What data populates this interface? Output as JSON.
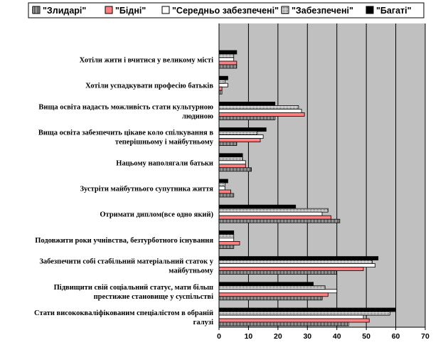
{
  "chart_data": {
    "type": "bar",
    "orientation": "horizontal",
    "legend_position": "top",
    "grid": true,
    "xlim": [
      0,
      70
    ],
    "x_ticks": [
      0,
      10,
      20,
      30,
      40,
      50,
      60,
      70
    ],
    "x_tick_labels": [
      "0",
      "10",
      "20",
      "30",
      "40",
      "50",
      "60",
      "70"
    ],
    "categories": [
      [
        "Хотіли жити і вчитися у великому місті"
      ],
      [
        "Хотіли успадкувати професію батьків"
      ],
      [
        "Вища освіта надасть можливість стати культурною",
        "людиною"
      ],
      [
        "Вища освіта забезпечить цікаве коло спілкування в",
        "теперішньому і майбутньому"
      ],
      [
        "Нацьому наполягали батьки"
      ],
      [
        "Зустріти майбутнього супутника життя"
      ],
      [
        "Отримати диплом(все одно який)"
      ],
      [
        "Подовжити роки учнівства, безтурботного існування"
      ],
      [
        "Забезпечити собі стабільний матеріальний статок у",
        "майбутньому"
      ],
      [
        "Підвищити свій соціальний статус, мати більш",
        "престижне становище у суспільстві"
      ],
      [
        "Стати висококваліфікованим спеціалістом в обраній",
        "галузі"
      ]
    ],
    "series": [
      {
        "name": "\"Багаті\"",
        "color": "#000000",
        "pattern": "solid-black",
        "values": [
          6,
          3,
          19,
          16,
          8,
          3,
          26,
          5,
          54,
          32,
          60
        ]
      },
      {
        "name": "\"Забезпечені\"",
        "color": "#ffffff",
        "pattern": "dots",
        "values": [
          5,
          2,
          27,
          13,
          8,
          2,
          37,
          5,
          52,
          36,
          58
        ]
      },
      {
        "name": "\"Середньо забезпечені\"",
        "color": "#ffffff",
        "pattern": "white",
        "values": [
          5,
          3,
          28,
          15,
          9,
          2,
          35,
          5,
          53,
          40,
          49
        ]
      },
      {
        "name": "\"Бідні\"",
        "color": "#ff8080",
        "pattern": "pink",
        "values": [
          6,
          1,
          29,
          14,
          9,
          4,
          38,
          7,
          49,
          37,
          51
        ]
      },
      {
        "name": "\"Злидарі\"",
        "color": "#ffffff",
        "pattern": "vertical-lines",
        "values": [
          6,
          1,
          19,
          6,
          11,
          5,
          41,
          5,
          40,
          35,
          44
        ]
      }
    ],
    "legend": [
      {
        "label": "\"Злидарі\"",
        "pattern": "vertical-lines"
      },
      {
        "label": "\"Бідні\"",
        "pattern": "pink"
      },
      {
        "label": "\"Середньо забезпечені\"",
        "pattern": "white"
      },
      {
        "label": "\"Забезпечені\"",
        "pattern": "dots"
      },
      {
        "label": "\"Багаті\"",
        "pattern": "solid-black"
      }
    ],
    "colors": {
      "plot_background": "#c0c0c0",
      "grid": "#000000",
      "pink": "#ff8080"
    }
  }
}
